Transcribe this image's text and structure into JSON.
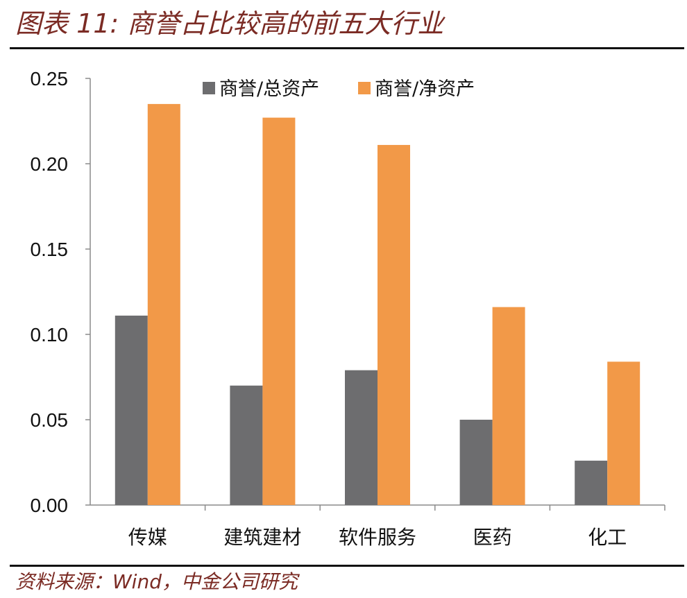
{
  "header": {
    "title": "图表 11:  商誉占比较高的前五大行业"
  },
  "footer": {
    "source": "资料来源：Wind，中金公司研究"
  },
  "chart_data": {
    "type": "bar",
    "categories": [
      "传媒",
      "建筑建材",
      "软件服务",
      "医药",
      "化工"
    ],
    "series": [
      {
        "name": "商誉/总资产",
        "color": "#6d6d6f",
        "values": [
          0.111,
          0.07,
          0.079,
          0.05,
          0.026
        ]
      },
      {
        "name": "商誉/净资产",
        "color": "#f29948",
        "values": [
          0.235,
          0.227,
          0.211,
          0.116,
          0.084
        ]
      }
    ],
    "ylim": [
      0,
      0.25
    ],
    "yticks": [
      "0.00",
      "0.05",
      "0.10",
      "0.15",
      "0.20",
      "0.25"
    ],
    "xlabel": "",
    "ylabel": "",
    "legend_position": "top",
    "grid": false
  }
}
